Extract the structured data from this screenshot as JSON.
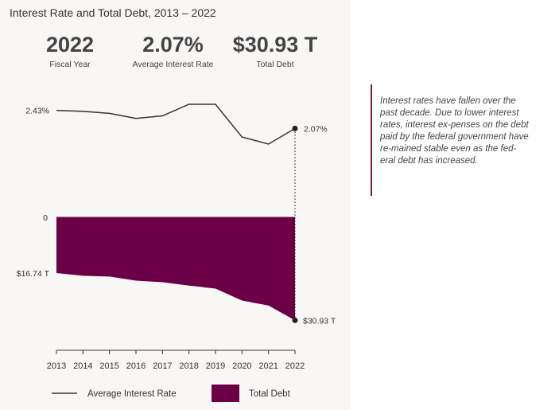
{
  "header": {
    "title": "Interest Rate and Total Debt, 2013 – 2022"
  },
  "stats": [
    {
      "value": "2022",
      "label": "Fiscal Year"
    },
    {
      "value": "2.07%",
      "label": "Average Interest Rate"
    },
    {
      "value": "$30.93 T",
      "label": "Total Debt"
    }
  ],
  "note": {
    "text": "Interest rates have fallen over the past decade. Due to lower interest rates, interest ex-penses on the debt paid by the federal government have re-mained stable even as the fed-eral debt has increased."
  },
  "colors": {
    "debt_fill": "#6b0047",
    "line": "#333333",
    "note_border": "#6e1e3a"
  },
  "chart_data": {
    "type": "line",
    "categories": [
      "2013",
      "2014",
      "2015",
      "2016",
      "2017",
      "2018",
      "2019",
      "2020",
      "2021",
      "2022"
    ],
    "series": [
      {
        "name": "Average Interest Rate",
        "type": "line",
        "values": [
          2.43,
          2.41,
          2.37,
          2.27,
          2.32,
          2.55,
          2.55,
          1.9,
          1.76,
          2.07
        ],
        "start_label": "2.43%",
        "end_label": "2.07%"
      },
      {
        "name": "Total Debt",
        "type": "area",
        "values": [
          16.74,
          17.55,
          17.8,
          19.0,
          19.5,
          20.5,
          21.4,
          25.0,
          26.5,
          30.93
        ],
        "zero_label": "0",
        "start_label": "$16.74 T",
        "end_label": "$30.93 T"
      }
    ],
    "legend": {
      "position": "bottom"
    }
  }
}
